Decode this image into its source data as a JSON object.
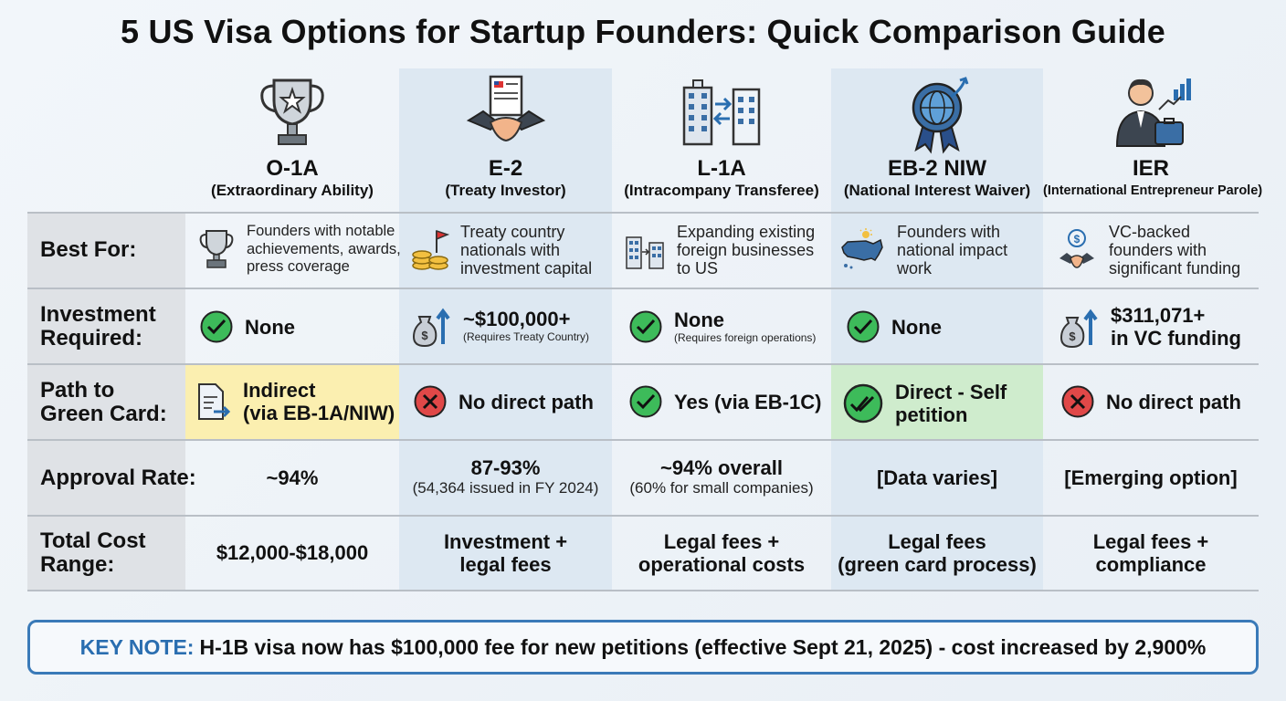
{
  "title": "5 US Visa Options for Startup Founders: Quick Comparison Guide",
  "colors": {
    "accent": "#2a6eb0",
    "check": "#3dbb5a",
    "cross": "#e04848",
    "highlight_yellow": "#fbefb0",
    "highlight_green": "#cfeccd"
  },
  "rows": [
    "Best For:",
    "Investment Required:",
    "Path to Green Card:",
    "Approval Rate:",
    "Total Cost Range:"
  ],
  "row_labels": {
    "best_for": "Best For:",
    "investment_1": "Investment",
    "investment_2": "Required:",
    "path_1": "Path to",
    "path_2": "Green Card:",
    "approval": "Approval Rate:",
    "cost_1": "Total Cost",
    "cost_2": "Range:"
  },
  "visas": [
    {
      "name": "O-1A",
      "subtitle": "(Extraordinary Ability)",
      "icon": "trophy-icon",
      "best_for": [
        "Founders with notable",
        "achievements, awards,",
        "press coverage"
      ],
      "investment": {
        "status": "check",
        "value": "None",
        "note": ""
      },
      "path": {
        "status": "document",
        "line1": "Indirect",
        "line2": "(via EB-1A/NIW)"
      },
      "approval": {
        "value": "~94%",
        "note": ""
      },
      "cost": [
        "$12,000-$18,000"
      ]
    },
    {
      "name": "E-2",
      "subtitle": "(Treaty Investor)",
      "icon": "handshake-contract-icon",
      "best_for": [
        "Treaty country",
        "nationals with",
        "investment capital"
      ],
      "investment": {
        "status": "money-bag",
        "value": "~$100,000+",
        "note": "(Requires Treaty Country)"
      },
      "path": {
        "status": "cross",
        "line1": "No direct path",
        "line2": ""
      },
      "approval": {
        "value": "87-93%",
        "note": "(54,364 issued in FY 2024)"
      },
      "cost": [
        "Investment +",
        "legal fees"
      ]
    },
    {
      "name": "L-1A",
      "subtitle": "(Intracompany Transferee)",
      "icon": "buildings-transfer-icon",
      "best_for": [
        "Expanding existing",
        "foreign businesses",
        "to US"
      ],
      "investment": {
        "status": "check",
        "value": "None",
        "note": "(Requires foreign operations)"
      },
      "path": {
        "status": "check",
        "line1": "Yes (via EB-1C)",
        "line2": ""
      },
      "approval": {
        "value": "~94% overall",
        "note": "(60% for small companies)"
      },
      "cost": [
        "Legal fees +",
        "operational costs"
      ]
    },
    {
      "name": "EB-2 NIW",
      "subtitle": "(National Interest Waiver)",
      "icon": "globe-badge-icon",
      "best_for": [
        "Founders with",
        "national impact",
        "work"
      ],
      "investment": {
        "status": "check",
        "value": "None",
        "note": ""
      },
      "path": {
        "status": "double-check",
        "line1": "Direct - Self",
        "line2": "petition"
      },
      "approval": {
        "value": "[Data varies]",
        "note": ""
      },
      "cost": [
        "Legal fees",
        "(green card process)"
      ]
    },
    {
      "name": "IER",
      "subtitle": "(International Entrepreneur Parole)",
      "icon": "businessman-chart-icon",
      "best_for": [
        "VC-backed",
        "founders with",
        "significant funding"
      ],
      "investment": {
        "status": "money-bag",
        "value": "$311,071+",
        "value2": "in VC funding",
        "note": ""
      },
      "path": {
        "status": "cross",
        "line1": "No direct path",
        "line2": ""
      },
      "approval": {
        "value": "[Emerging option]",
        "note": ""
      },
      "cost": [
        "Legal fees +",
        "compliance"
      ]
    }
  ],
  "key_note": {
    "label": "KEY NOTE:",
    "text": "H-1B visa now has $100,000 fee for new petitions (effective Sept 21, 2025) - cost increased by 2,900%"
  }
}
